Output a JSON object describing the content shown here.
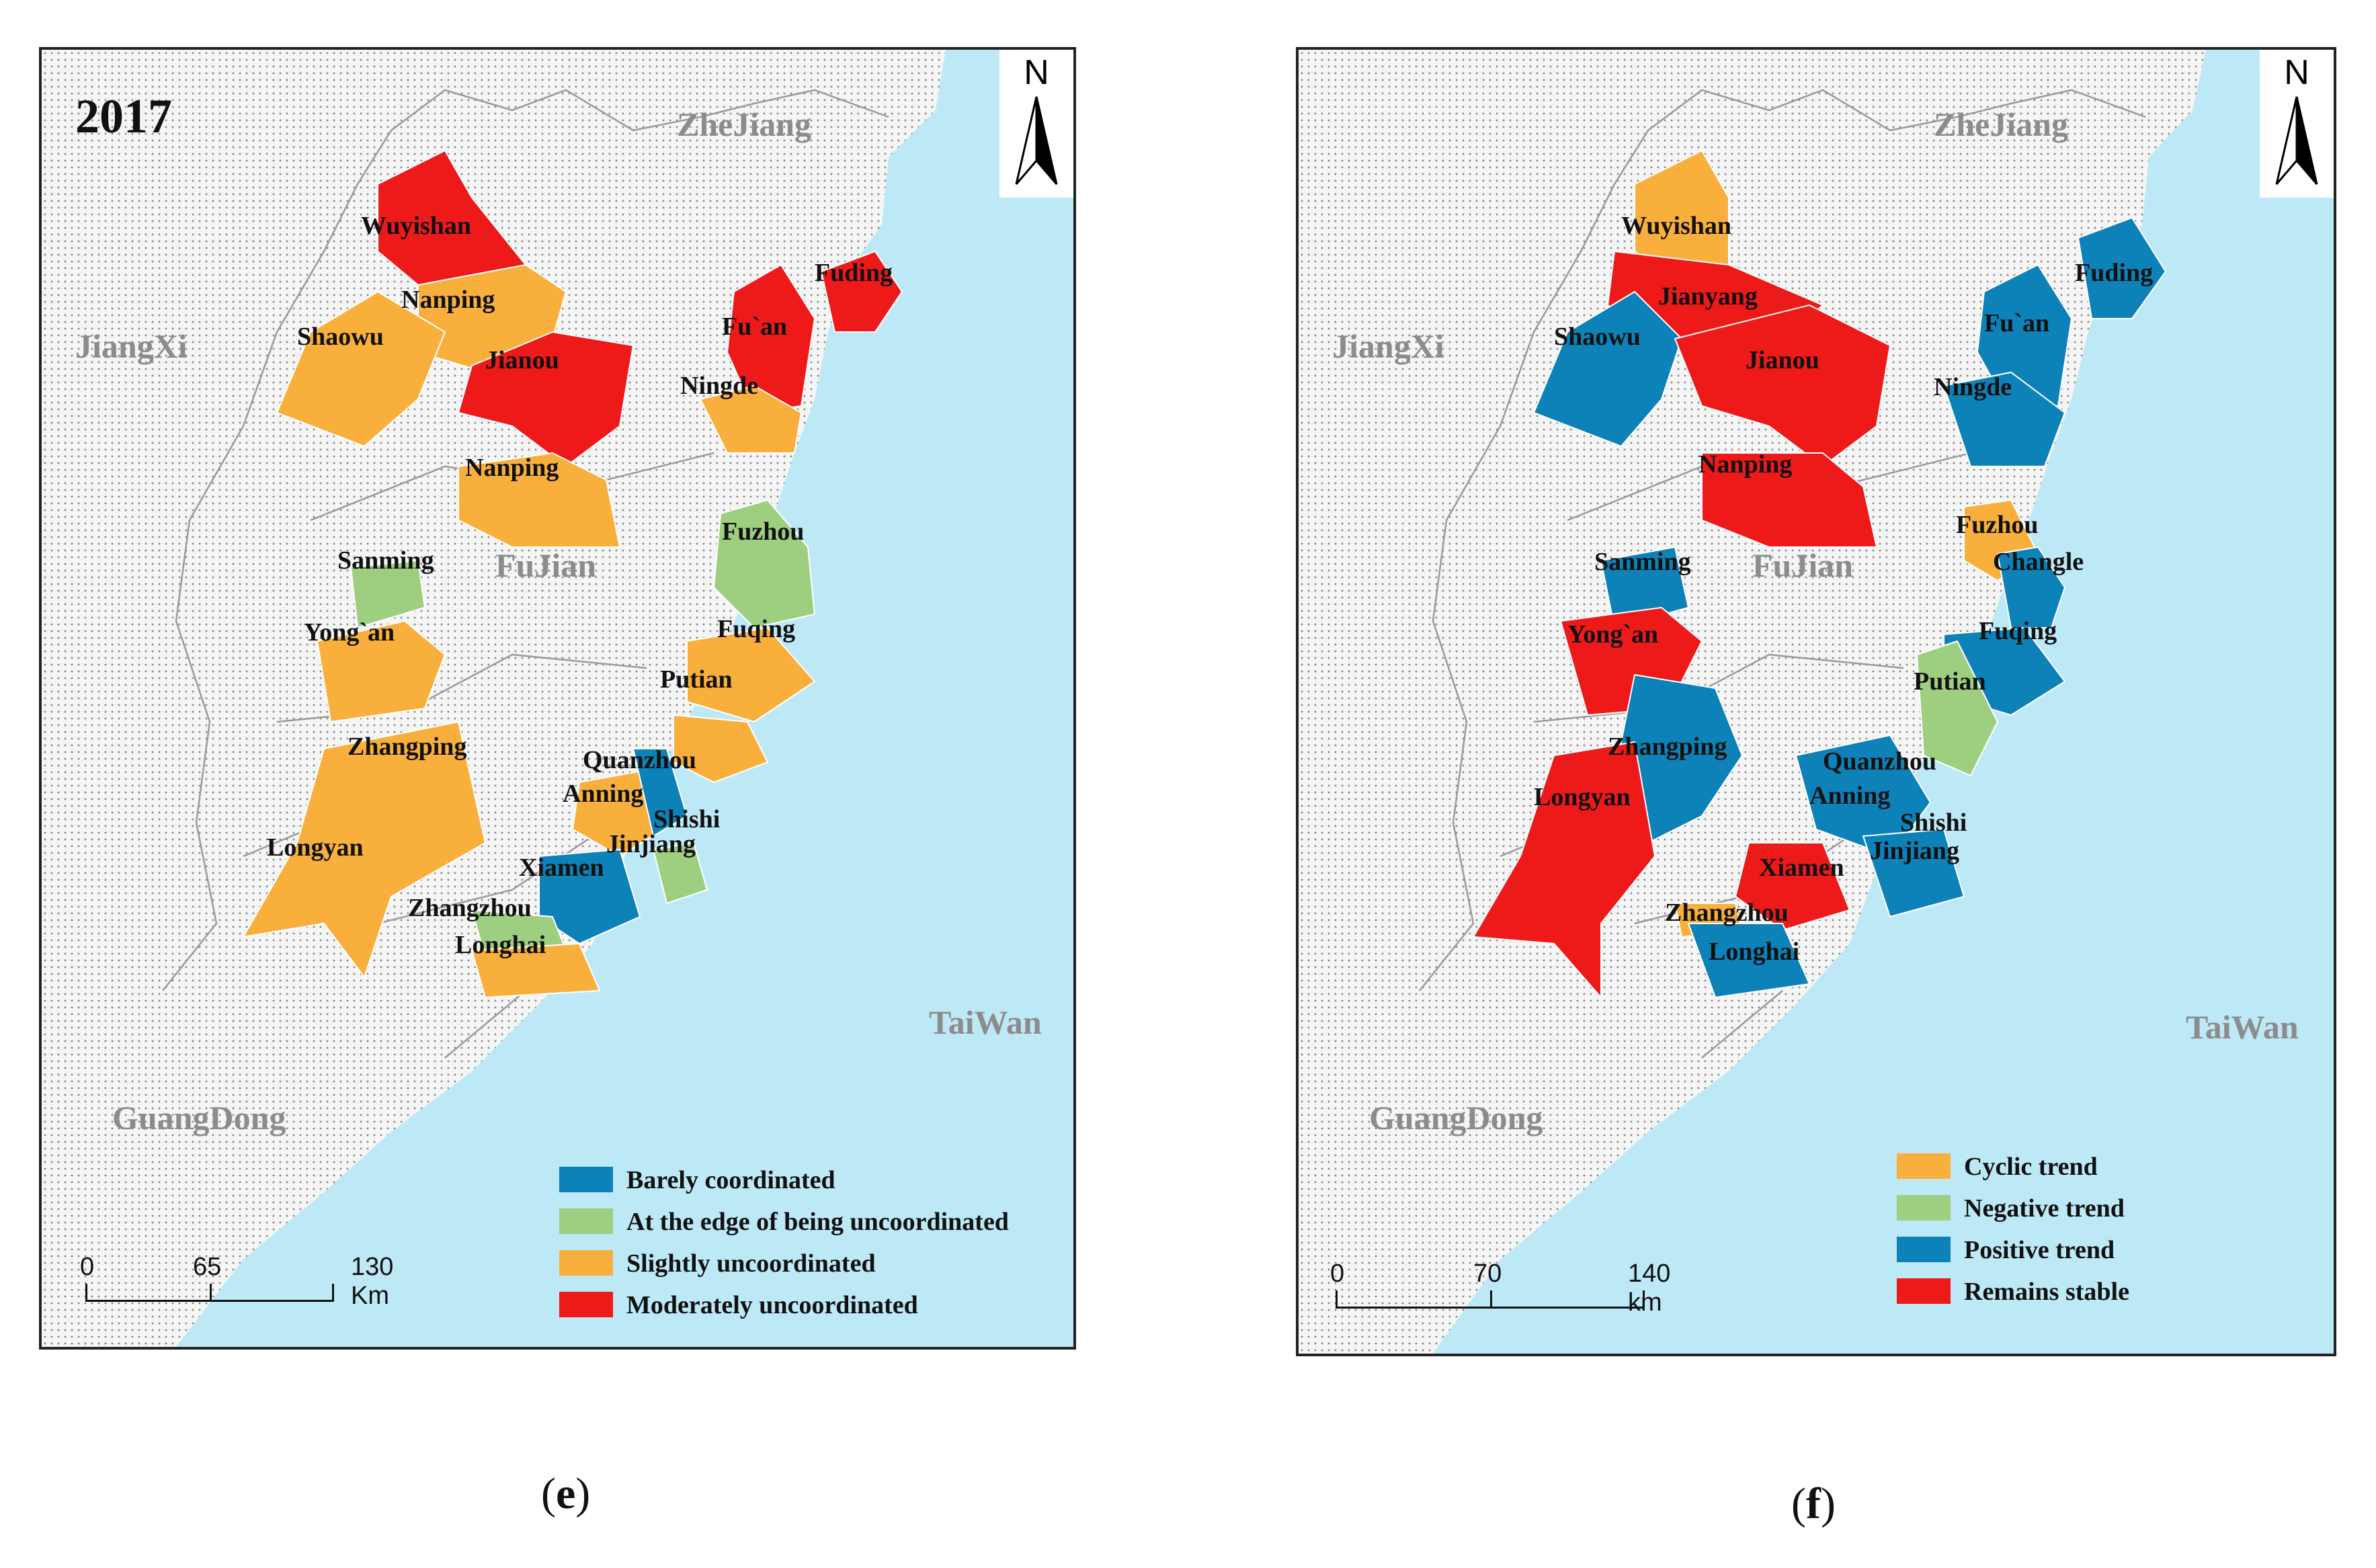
{
  "panel_e": {
    "year": "2017",
    "caption_letter": "e",
    "provinces": {
      "zhejiang": "ZheJiang",
      "jiangxi": "JiangXi",
      "fujian": "FuJian",
      "guangdong": "GuangDong",
      "taiwan": "TaiWan"
    },
    "north": "N",
    "scale": {
      "l0": "0",
      "l1": "65",
      "l2": "130 Km"
    },
    "legend": [
      {
        "label": "Barely coordinated",
        "color": "#0d82b8"
      },
      {
        "label": "At the edge of being uncoordinated",
        "color": "#9ecf81"
      },
      {
        "label": "Slightly uncoordinated",
        "color": "#f9af3c"
      },
      {
        "label": "Moderately uncoordinated",
        "color": "#ee1a1a"
      }
    ],
    "cities": {
      "wuyishan": "Wuyishan",
      "nanping1": "Nanping",
      "shaowu": "Shaowu",
      "jianou": "Jianou",
      "fuan": "Fu`an",
      "fuding": "Fuding",
      "ningde": "Ningde",
      "nanping2": "Nanping",
      "fuzhou": "Fuzhou",
      "sanming": "Sanming",
      "yongan": "Yong`an",
      "fuqing": "Fuqing",
      "putian": "Putian",
      "zhangping": "Zhangping",
      "quanzhou": "Quanzhou",
      "anning": "Anning",
      "shishi": "Shishi",
      "jinjiang": "Jinjiang",
      "longyan": "Longyan",
      "xiamen": "Xiamen",
      "zhangzhou": "Zhangzhou",
      "longhai": "Longhai"
    }
  },
  "panel_f": {
    "caption_letter": "f",
    "provinces": {
      "zhejiang": "ZheJiang",
      "jiangxi": "JiangXi",
      "fujian": "FuJian",
      "guangdong": "GuangDong",
      "taiwan": "TaiWan"
    },
    "north": "N",
    "scale": {
      "l0": "0",
      "l1": "70",
      "l2": "140 km"
    },
    "legend": [
      {
        "label": "Cyclic trend",
        "color": "#f9af3c"
      },
      {
        "label": "Negative trend",
        "color": "#9ecf81"
      },
      {
        "label": "Positive trend",
        "color": "#0d82b8"
      },
      {
        "label": "Remains stable",
        "color": "#ee1a1a"
      }
    ],
    "cities": {
      "wuyishan": "Wuyishan",
      "jianyang": "Jianyang",
      "shaowu": "Shaowu",
      "jianou": "Jianou",
      "fuan": "Fu`an",
      "fuding": "Fuding",
      "ningde": "Ningde",
      "nanping": "Nanping",
      "fuzhou": "Fuzhou",
      "changle": "Changle",
      "sanming": "Sanming",
      "yongan": "Yong`an",
      "fuqing": "Fuqing",
      "putian": "Putian",
      "zhangping": "Zhangping",
      "quanzhou": "Quanzhou",
      "anning": "Anning",
      "shishi": "Shishi",
      "jinjiang": "Jinjiang",
      "longyan": "Longyan",
      "xiamen": "Xiamen",
      "zhangzhou": "Zhangzhou",
      "longhai": "Longhai"
    }
  }
}
